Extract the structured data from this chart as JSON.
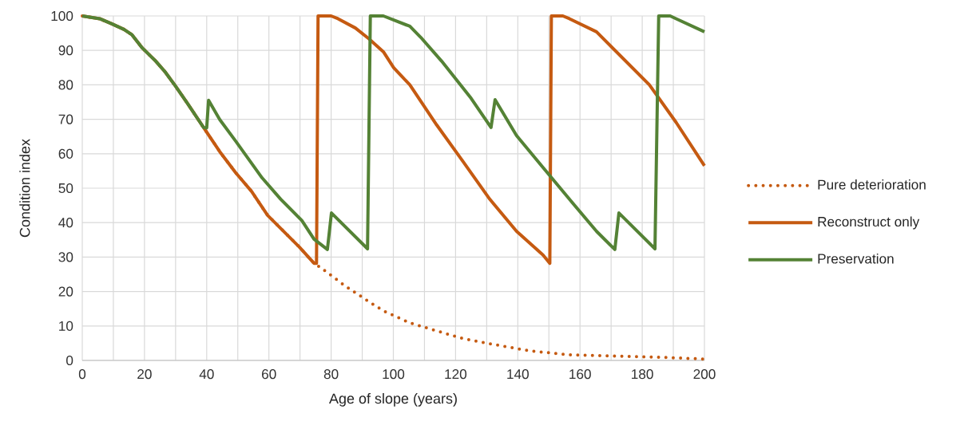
{
  "chart_data": {
    "type": "line",
    "xlabel": "Age of slope (years)",
    "ylabel": "Condition index",
    "xlim": [
      0,
      200
    ],
    "ylim": [
      0,
      100
    ],
    "xticks": [
      0,
      {
        "value": 10,
        "label": null
      },
      20,
      {
        "value": 30,
        "label": null
      },
      40,
      {
        "value": 50,
        "label": null
      },
      60,
      {
        "value": 70,
        "label": null
      },
      80,
      {
        "value": 90,
        "label": null
      },
      100,
      {
        "value": 110,
        "label": null
      },
      120,
      {
        "value": 130,
        "label": null
      },
      140,
      {
        "value": 150,
        "label": null
      },
      160,
      {
        "value": 170,
        "label": null
      },
      180,
      {
        "value": 190,
        "label": null
      },
      200
    ],
    "yticks": [
      0,
      10,
      20,
      30,
      40,
      50,
      60,
      70,
      80,
      90,
      100
    ],
    "grid": true,
    "legend": "right",
    "marker": "none",
    "series": [
      {
        "name": "Pure deterioration",
        "color": "#c55a11",
        "line_style": "dotted",
        "x": [
          0,
          5.6,
          9.5,
          13.4,
          15.9,
          19.3,
          23.6,
          26.6,
          30,
          33.9,
          39,
          44.2,
          49.3,
          54.4,
          59.6,
          64.7,
          69.8,
          74.5,
          77,
          84.4,
          92.1,
          96.8,
          105.3,
          113.9,
          122.5,
          131.9,
          143.8,
          156.6,
          173.8,
          186.6,
          200
        ],
        "values": [
          100,
          99.2,
          97.7,
          96.1,
          94.6,
          90.7,
          86.9,
          83.8,
          79.6,
          74.5,
          67.6,
          60.6,
          54.5,
          49.1,
          42.1,
          37.5,
          32.9,
          28.2,
          26.7,
          21.7,
          17.1,
          14.4,
          10.9,
          8.6,
          6.3,
          4.7,
          2.8,
          1.6,
          1.2,
          0.9,
          0.4
        ]
      },
      {
        "name": "Reconstruct only",
        "color": "#c55a11",
        "line_style": "solid",
        "x": [
          0,
          5.6,
          9.5,
          13.4,
          15.9,
          19.3,
          23.6,
          26.6,
          30,
          33.9,
          39,
          44.2,
          49.3,
          54.4,
          59.6,
          64.7,
          69.8,
          74.5,
          75.3,
          75.8,
          80,
          82.2,
          87.8,
          92.1,
          96.8,
          100.1,
          105.3,
          113.9,
          122.5,
          131,
          139.6,
          148.1,
          150.3,
          150.8,
          154.5,
          156.6,
          165.3,
          173.8,
          182.3,
          190.9,
          200
        ],
        "values": [
          100,
          99.2,
          97.7,
          96.1,
          94.6,
          90.7,
          86.9,
          83.8,
          79.6,
          74.5,
          67.6,
          60.6,
          54.5,
          49.1,
          42.1,
          37.5,
          32.9,
          28.2,
          28.2,
          100,
          100,
          99.2,
          96.5,
          93.4,
          89.6,
          85,
          80,
          68.4,
          57.6,
          46.8,
          37.5,
          30.6,
          28.2,
          100,
          100,
          99.2,
          95.4,
          87.7,
          80,
          69.1,
          56.5
        ]
      },
      {
        "name": "Preservation",
        "color": "#548235",
        "line_style": "solid",
        "x": [
          0,
          5.6,
          9.5,
          13.4,
          15.9,
          19.3,
          23.6,
          26.6,
          30,
          33.9,
          39,
          40,
          40.6,
          44.2,
          49.3,
          57.8,
          63.8,
          70.6,
          74.5,
          78.8,
          80.1,
          91.7,
          92.6,
          96.8,
          105.3,
          108.8,
          115.5,
          121.6,
          125,
          131.4,
          132.7,
          139.6,
          148.1,
          156.6,
          165.3,
          171.2,
          172.5,
          184.1,
          185.3,
          189,
          190.9,
          200
        ],
        "values": [
          100,
          99.2,
          97.7,
          96.1,
          94.6,
          90.7,
          86.9,
          83.8,
          79.6,
          74.5,
          67.6,
          67.5,
          75.5,
          69.9,
          63.7,
          53,
          46.8,
          40.6,
          35.2,
          32.2,
          42.8,
          32.4,
          100,
          100,
          97,
          93.8,
          86.9,
          80,
          76.1,
          67.6,
          75.7,
          65.3,
          56,
          46.8,
          37.5,
          32.2,
          42.8,
          32.4,
          100,
          100,
          99.2,
          95.4
        ]
      }
    ]
  }
}
